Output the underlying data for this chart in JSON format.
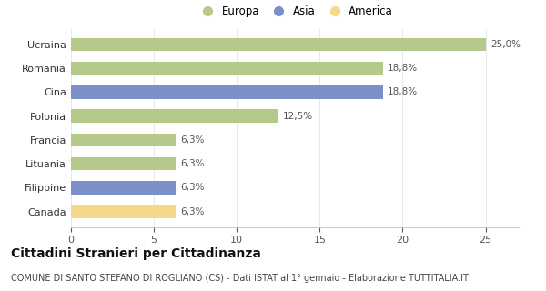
{
  "categories": [
    "Canada",
    "Filippine",
    "Lituania",
    "Francia",
    "Polonia",
    "Cina",
    "Romania",
    "Ucraina"
  ],
  "values": [
    6.3,
    6.3,
    6.3,
    6.3,
    12.5,
    18.8,
    18.8,
    25.0
  ],
  "labels": [
    "6,3%",
    "6,3%",
    "6,3%",
    "6,3%",
    "12,5%",
    "18,8%",
    "18,8%",
    "25,0%"
  ],
  "colors": [
    "#f5d98b",
    "#7b8fc7",
    "#b5c98b",
    "#b5c98b",
    "#b5c98b",
    "#7b8fc7",
    "#b5c98b",
    "#b5c98b"
  ],
  "legend_labels": [
    "Europa",
    "Asia",
    "America"
  ],
  "legend_colors": [
    "#b5c98b",
    "#7b8fc7",
    "#f5d98b"
  ],
  "title": "Cittadini Stranieri per Cittadinanza",
  "subtitle": "COMUNE DI SANTO STEFANO DI ROGLIANO (CS) - Dati ISTAT al 1° gennaio - Elaborazione TUTTITALIA.IT",
  "xlim": [
    0,
    27
  ],
  "xticks": [
    0,
    5,
    10,
    15,
    20,
    25
  ],
  "background_color": "#ffffff",
  "bar_height": 0.55,
  "title_fontsize": 10,
  "subtitle_fontsize": 7,
  "label_fontsize": 7.5,
  "tick_fontsize": 8,
  "legend_fontsize": 8.5
}
